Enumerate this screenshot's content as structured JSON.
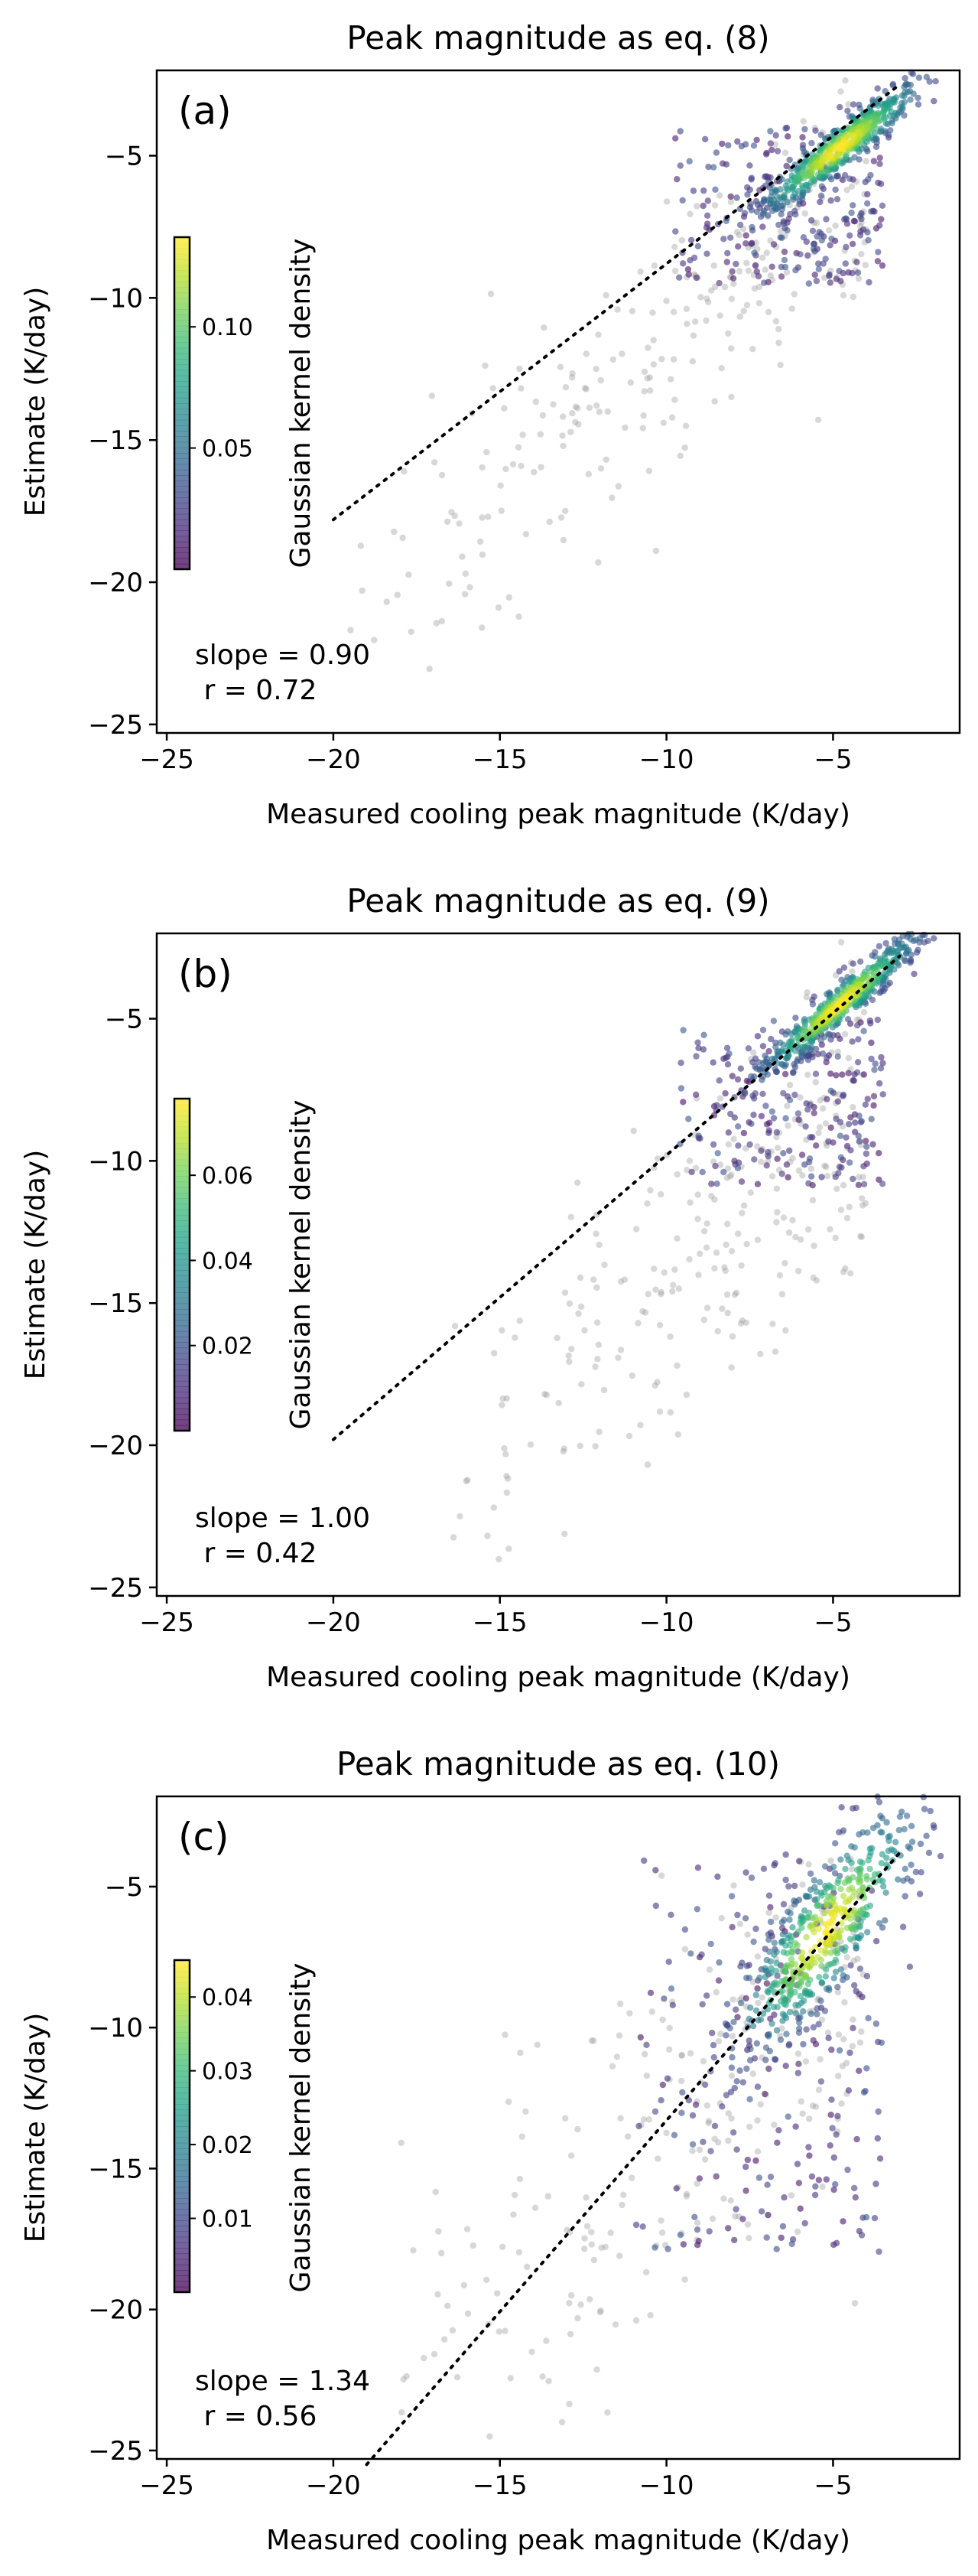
{
  "chart_data": [
    {
      "type": "scatter",
      "panel_label": "(a)",
      "title": "Peak magnitude as eq. (8)",
      "xlabel": "Measured cooling peak magnitude (K/day)",
      "ylabel": "Estimate (K/day)",
      "xlim": [
        -25.3,
        -1.2
      ],
      "ylim": [
        -25.3,
        -2.0
      ],
      "x_ticks": [
        -25,
        -20,
        -15,
        -10,
        -5
      ],
      "y_ticks": [
        -25,
        -20,
        -15,
        -10,
        -5
      ],
      "fit_line": {
        "x": [
          -20,
          -3
        ],
        "y": [
          -17.8,
          -2.5
        ],
        "style": "dotted"
      },
      "slope_text": "slope = 0.90",
      "r_text": " r = 0.72",
      "colorbar": {
        "label": "Gaussian kernel density",
        "ticks": [
          "0.05",
          "0.10"
        ],
        "tick_values": [
          0.05,
          0.1
        ],
        "vmin": 0.0,
        "vmax": 0.137,
        "colormap": "viridis"
      },
      "cluster": {
        "slope": 0.9,
        "intercept": -0.4,
        "spread_along": 1.4,
        "spread_across": 0.45,
        "center_x": -4.8
      },
      "colored_spread": {
        "x_range": [
          -10,
          -3.5
        ],
        "y_range": [
          -9.5,
          -4
        ]
      },
      "gray_points": {
        "x_range": [
          -20,
          -4
        ],
        "y_offset_mean": -1.5,
        "y_spread": 3.5
      }
    },
    {
      "type": "scatter",
      "panel_label": "(b)",
      "title": "Peak magnitude as eq. (9)",
      "xlabel": "Measured cooling peak magnitude (K/day)",
      "ylabel": "Estimate (K/day)",
      "xlim": [
        -25.3,
        -1.2
      ],
      "ylim": [
        -25.3,
        -2.0
      ],
      "x_ticks": [
        -25,
        -20,
        -15,
        -10,
        -5
      ],
      "y_ticks": [
        -25,
        -20,
        -15,
        -10,
        -5
      ],
      "fit_line": {
        "x": [
          -20,
          -3
        ],
        "y": [
          -19.8,
          -2.8
        ],
        "style": "dotted"
      },
      "slope_text": "slope = 1.00",
      "r_text": " r = 0.42",
      "colorbar": {
        "label": "Gaussian kernel density",
        "ticks": [
          "0.02",
          "0.04",
          "0.06"
        ],
        "tick_values": [
          0.02,
          0.04,
          0.06
        ],
        "vmin": 0.0,
        "vmax": 0.078,
        "colormap": "viridis"
      },
      "cluster": {
        "slope": 1.0,
        "intercept": 0.3,
        "spread_along": 1.4,
        "spread_across": 0.4,
        "center_x": -4.8
      },
      "colored_spread": {
        "x_range": [
          -10,
          -3.5
        ],
        "y_range": [
          -11,
          -5
        ]
      },
      "gray_points": {
        "x_range": [
          -17,
          -4
        ],
        "y_offset_mean": -4,
        "y_spread": 5
      }
    },
    {
      "type": "scatter",
      "panel_label": "(c)",
      "title": "Peak magnitude as eq. (10)",
      "xlabel": "Measured cooling peak magnitude (K/day)",
      "ylabel": "Estimate (K/day)",
      "xlim": [
        -25.3,
        -1.2
      ],
      "ylim": [
        -25.3,
        -1.8
      ],
      "x_ticks": [
        -25,
        -20,
        -15,
        -10,
        -5
      ],
      "y_ticks": [
        -25,
        -20,
        -15,
        -10,
        -5
      ],
      "fit_line": {
        "x": [
          -19,
          -3
        ],
        "y": [
          -25.5,
          -3.8
        ],
        "style": "dotted"
      },
      "slope_text": "slope = 1.34",
      "r_text": " r = 0.56",
      "colorbar": {
        "label": "Gaussian kernel density",
        "ticks": [
          "0.01",
          "0.02",
          "0.03",
          "0.04"
        ],
        "tick_values": [
          0.01,
          0.02,
          0.03,
          0.04
        ],
        "vmin": 0.0,
        "vmax": 0.045,
        "colormap": "viridis"
      },
      "cluster": {
        "slope": 1.3,
        "intercept": 0.2,
        "spread_along": 1.6,
        "spread_across": 1.3,
        "center_x": -5.2
      },
      "colored_spread": {
        "x_range": [
          -11,
          -3.5
        ],
        "y_range": [
          -18,
          -4
        ]
      },
      "gray_points": {
        "x_range": [
          -19,
          -4
        ],
        "y_offset_mean": -4,
        "y_spread": 6
      }
    }
  ]
}
